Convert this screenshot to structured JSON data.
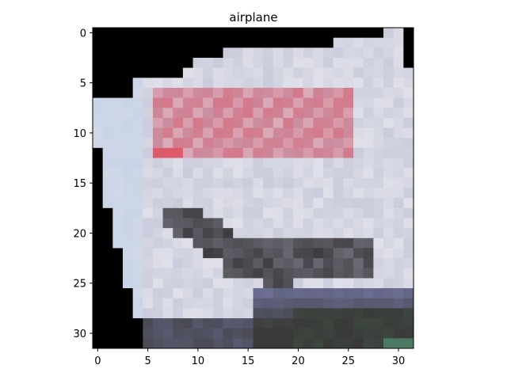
{
  "figure": {
    "title": "airplane"
  },
  "chart_data": {
    "type": "heatmap",
    "title": "airplane",
    "image_label": "airplane",
    "image_size": [
      32,
      32
    ],
    "xlim": [
      -0.5,
      31.5
    ],
    "ylim": [
      31.5,
      -0.5
    ],
    "xticks": [
      0,
      5,
      10,
      15,
      20,
      25,
      30
    ],
    "yticks": [
      0,
      5,
      10,
      15,
      20,
      25,
      30
    ],
    "xtick_labels": [
      "0",
      "5",
      "10",
      "15",
      "20",
      "25",
      "30"
    ],
    "ytick_labels": [
      "0",
      "5",
      "10",
      "15",
      "20",
      "25",
      "30"
    ],
    "grid": false,
    "xlabel": "",
    "ylabel": "",
    "colors": {
      "background": "#000000",
      "sky_light": "#c9d4e6",
      "fuselage_white": "#e0e0ea",
      "fuselage_grey": "#b8bcd0",
      "stripe_red": "#d4788a",
      "stripe_red_dark": "#dd5a6a",
      "shadow_dark": "#3e3c40",
      "ground_dark": "#3a3a38",
      "ground_blue": "#6c6e94",
      "teal_corner": "#4f8a6c"
    }
  }
}
